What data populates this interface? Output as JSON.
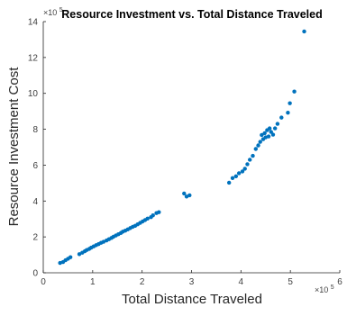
{
  "chart_data": {
    "type": "scatter",
    "title": "Resource Investment vs. Total Distance Traveled",
    "xlabel": "Total Distance Traveled",
    "ylabel": "Resource Investment Cost",
    "x_multiplier_label": "×10",
    "x_multiplier_exponent": "5",
    "y_multiplier_label": "×10",
    "y_multiplier_exponent": "5",
    "xlim": [
      0,
      6
    ],
    "ylim": [
      0,
      14
    ],
    "xticks": [
      "0",
      "1",
      "2",
      "3",
      "4",
      "5",
      "6"
    ],
    "yticks": [
      "0",
      "2",
      "4",
      "6",
      "8",
      "10",
      "12",
      "14"
    ],
    "grid": false,
    "legend": "none",
    "marker_color": "#0072BD",
    "series": [
      {
        "x": [
          0.34,
          0.4,
          0.45,
          0.5,
          0.55,
          0.73,
          0.79,
          0.84,
          0.88,
          0.93,
          0.97,
          1.02,
          1.07,
          1.12,
          1.17,
          1.22,
          1.28,
          1.33,
          1.38,
          1.42,
          1.47,
          1.52,
          1.57,
          1.61,
          1.66,
          1.71,
          1.76,
          1.81,
          1.86,
          1.91,
          1.96,
          2.01,
          2.06,
          2.11,
          2.18,
          2.22,
          2.29,
          2.34,
          2.85,
          2.9,
          2.96,
          3.76,
          3.83,
          3.9,
          3.96,
          4.03,
          4.08,
          4.13,
          4.18,
          4.24,
          4.3,
          4.35,
          4.39,
          4.42,
          4.45,
          4.48,
          4.5,
          4.53,
          4.56,
          4.58,
          4.61,
          4.65,
          4.69,
          4.74,
          4.82,
          4.95,
          4.99,
          5.08,
          5.28
        ],
        "y": [
          0.55,
          0.6,
          0.7,
          0.78,
          0.87,
          1.04,
          1.12,
          1.2,
          1.27,
          1.33,
          1.4,
          1.47,
          1.54,
          1.6,
          1.67,
          1.73,
          1.8,
          1.87,
          1.94,
          2.01,
          2.08,
          2.15,
          2.22,
          2.29,
          2.35,
          2.42,
          2.49,
          2.56,
          2.62,
          2.7,
          2.78,
          2.86,
          2.94,
          3.02,
          3.1,
          3.2,
          3.33,
          3.38,
          4.42,
          4.25,
          4.32,
          5.02,
          5.28,
          5.38,
          5.55,
          5.65,
          5.8,
          6.05,
          6.3,
          6.52,
          6.9,
          7.1,
          7.3,
          7.68,
          7.45,
          7.78,
          7.55,
          7.95,
          7.6,
          8.05,
          7.85,
          7.7,
          8.05,
          8.3,
          8.65,
          8.92,
          9.45,
          10.1,
          13.45
        ]
      }
    ]
  }
}
